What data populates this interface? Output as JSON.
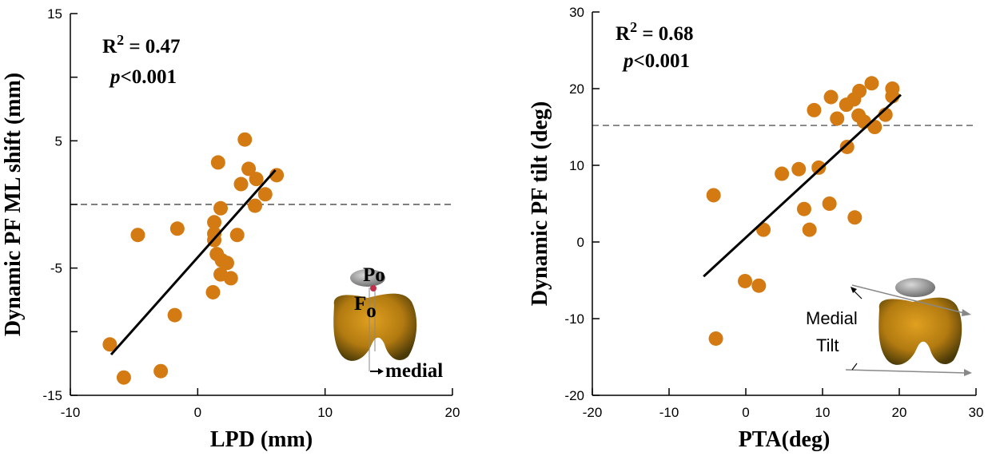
{
  "chart_data": [
    {
      "type": "scatter",
      "x_label": "LPD (mm)",
      "y_label": "Dynamic PF ML shift (mm)",
      "color": "#d47a12",
      "xlim": [
        -10,
        20
      ],
      "ylim": [
        -15,
        15
      ],
      "xticks": [
        -10,
        0,
        10,
        20
      ],
      "yticks": [
        -15,
        -5,
        5,
        15
      ],
      "yticks_minor": [
        -10,
        0,
        10
      ],
      "x": [
        -6.9,
        -5.8,
        -4.7,
        -2.9,
        -1.8,
        -1.6,
        1.6,
        3.7,
        1.8,
        1.3,
        1.3,
        1.3,
        1.5,
        1.9,
        2.3,
        1.8,
        2.6,
        1.2,
        3.1,
        3.4,
        4.0,
        4.6,
        4.5,
        5.3,
        6.2
      ],
      "values": [
        -11.0,
        -13.6,
        -2.4,
        -13.1,
        -8.7,
        -1.9,
        3.3,
        5.1,
        -0.3,
        -1.4,
        -2.3,
        -2.8,
        -3.9,
        -4.4,
        -4.6,
        -5.5,
        -5.8,
        -6.9,
        -2.4,
        1.6,
        2.8,
        2.0,
        -0.1,
        0.8,
        2.3
      ],
      "reference_line": 0,
      "fit_line": {
        "x": [
          -6.8,
          6.1
        ],
        "values": [
          -11.8,
          2.7
        ]
      },
      "stats": {
        "r": "R",
        "r_exp": "2",
        "r_value": " = 0.47",
        "p": "p",
        "p_value": "<0.001"
      },
      "diagram_labels": {
        "patella": "P",
        "patella_sub": "o",
        "femur": "F",
        "femur_sub": "o",
        "direction": "medial"
      }
    },
    {
      "type": "scatter",
      "x_label": "PTA(deg)",
      "y_label": "Dynamic PF tilt (deg)",
      "color": "#d47a12",
      "xlim": [
        -20,
        30
      ],
      "ylim": [
        -20,
        30
      ],
      "xticks": [
        -20,
        -10,
        0,
        10,
        20,
        30
      ],
      "yticks": [
        -20,
        -10,
        0,
        10,
        20,
        30
      ],
      "x": [
        -4.2,
        -3.9,
        -0.1,
        1.7,
        2.3,
        4.7,
        6.9,
        7.6,
        8.3,
        8.9,
        9.5,
        10.9,
        11.1,
        11.9,
        13.1,
        13.2,
        14.1,
        14.2,
        14.7,
        14.8,
        15.4,
        16.4,
        16.8,
        18.2,
        19.1,
        19.1
      ],
      "values": [
        6.1,
        -12.6,
        -5.1,
        -5.7,
        1.6,
        8.9,
        9.5,
        4.3,
        1.6,
        17.2,
        9.7,
        5.0,
        18.9,
        16.1,
        17.9,
        12.4,
        18.6,
        3.2,
        16.5,
        19.7,
        15.7,
        20.7,
        15.0,
        16.6,
        20.0,
        19.0
      ],
      "reference_line": 15.2,
      "fit_line": {
        "x": [
          -5.5,
          20.2
        ],
        "values": [
          -4.5,
          19.2
        ]
      },
      "stats": {
        "r": "R",
        "r_exp": "2",
        "r_value": " = 0.68",
        "p": "p",
        "p_value": "<0.001"
      },
      "diagram_labels": {
        "line1": "Medial",
        "line2": "Tilt"
      }
    }
  ]
}
